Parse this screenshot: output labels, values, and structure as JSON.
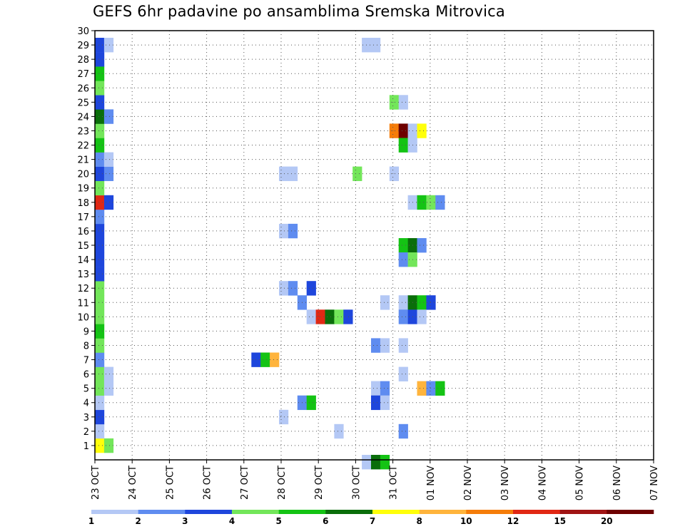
{
  "chart_data": {
    "type": "heatmap",
    "title": "GEFS 6hr padavine po ansamblima Sremska Mitrovica",
    "x_tick_labels": [
      "23 OCT",
      "24 OCT",
      "25 OCT",
      "26 OCT",
      "27 OCT",
      "28 OCT",
      "29 OCT",
      "30 OCT",
      "31 OCT",
      "01 NOV",
      "02 NOV",
      "03 NOV",
      "04 NOV",
      "05 NOV",
      "06 NOV",
      "07 NOV"
    ],
    "x_range_days": [
      0,
      15
    ],
    "y_tick_labels": [
      "1",
      "2",
      "3",
      "4",
      "5",
      "6",
      "7",
      "8",
      "9",
      "10",
      "11",
      "12",
      "13",
      "14",
      "15",
      "16",
      "17",
      "18",
      "19",
      "20",
      "21",
      "22",
      "23",
      "24",
      "25",
      "26",
      "27",
      "28",
      "29",
      "30"
    ],
    "y_range": [
      0,
      30
    ],
    "grid": true,
    "colorbar": {
      "labels": [
        "1",
        "2",
        "3",
        "4",
        "5",
        "6",
        "7",
        "8",
        "10",
        "12",
        "15",
        "20"
      ],
      "colors": [
        "#b4c8f5",
        "#5f8cf0",
        "#1e46dc",
        "#73e65a",
        "#14c314",
        "#0a6e0a",
        "#ffff0a",
        "#ffb43c",
        "#f57d0a",
        "#e12814",
        "#a01414",
        "#6e0000"
      ]
    },
    "cells": [
      [
        0,
        1,
        7
      ],
      [
        1,
        1,
        4
      ],
      [
        0,
        2,
        1
      ],
      [
        0,
        3,
        3
      ],
      [
        0,
        4,
        1
      ],
      [
        0,
        5,
        4
      ],
      [
        1,
        5,
        1
      ],
      [
        0,
        6,
        4
      ],
      [
        1,
        6,
        1
      ],
      [
        0,
        7,
        2
      ],
      [
        0,
        8,
        4
      ],
      [
        0,
        9,
        5
      ],
      [
        0,
        10,
        4
      ],
      [
        0,
        11,
        4
      ],
      [
        0,
        12,
        4
      ],
      [
        0,
        13,
        3
      ],
      [
        0,
        14,
        3
      ],
      [
        0,
        15,
        3
      ],
      [
        0,
        16,
        3
      ],
      [
        0,
        17,
        2
      ],
      [
        0,
        18,
        10
      ],
      [
        1,
        18,
        3
      ],
      [
        0,
        19,
        4
      ],
      [
        0,
        20,
        3
      ],
      [
        1,
        20,
        2
      ],
      [
        0,
        21,
        2
      ],
      [
        1,
        21,
        1
      ],
      [
        0,
        22,
        5
      ],
      [
        0,
        23,
        4
      ],
      [
        0,
        24,
        6
      ],
      [
        1,
        24,
        2
      ],
      [
        0,
        25,
        3
      ],
      [
        0,
        26,
        4
      ],
      [
        0,
        27,
        5
      ],
      [
        0,
        28,
        3
      ],
      [
        0,
        29,
        3
      ],
      [
        1,
        29,
        1
      ],
      [
        29,
        29,
        1
      ],
      [
        30,
        29,
        1
      ],
      [
        32,
        25,
        4
      ],
      [
        33,
        25,
        1
      ],
      [
        32,
        23,
        9
      ],
      [
        33,
        23,
        12
      ],
      [
        34,
        23,
        1
      ],
      [
        35,
        23,
        7
      ],
      [
        33,
        22,
        5
      ],
      [
        34,
        22,
        1
      ],
      [
        29,
        -0.15,
        1
      ],
      [
        30,
        -0.15,
        6
      ],
      [
        31,
        -0.15,
        5
      ],
      [
        20,
        20,
        1
      ],
      [
        21,
        20,
        1
      ],
      [
        28,
        20,
        4
      ],
      [
        32,
        20,
        1
      ],
      [
        34,
        18,
        1
      ],
      [
        35,
        18,
        5
      ],
      [
        36,
        18,
        4
      ],
      [
        37,
        18,
        2
      ],
      [
        20,
        16,
        1
      ],
      [
        21,
        16,
        2
      ],
      [
        33,
        15,
        5
      ],
      [
        34,
        15,
        6
      ],
      [
        35,
        15,
        2
      ],
      [
        33,
        14,
        2
      ],
      [
        34,
        14,
        4
      ],
      [
        20,
        12,
        1
      ],
      [
        21,
        12,
        2
      ],
      [
        23,
        12,
        3
      ],
      [
        22,
        11,
        2
      ],
      [
        31,
        11,
        1
      ],
      [
        33,
        11,
        1
      ],
      [
        34,
        11,
        6
      ],
      [
        35,
        11,
        5
      ],
      [
        36,
        11,
        3
      ],
      [
        23,
        10,
        1
      ],
      [
        24,
        10,
        10
      ],
      [
        25,
        10,
        6
      ],
      [
        26,
        10,
        4
      ],
      [
        27,
        10,
        3
      ],
      [
        33,
        10,
        2
      ],
      [
        34,
        10,
        3
      ],
      [
        35,
        10,
        1
      ],
      [
        30,
        8,
        2
      ],
      [
        31,
        8,
        1
      ],
      [
        33,
        8,
        1
      ],
      [
        17,
        7,
        3
      ],
      [
        18,
        7,
        5
      ],
      [
        19,
        7,
        8
      ],
      [
        33,
        6,
        1
      ],
      [
        30,
        5,
        1
      ],
      [
        31,
        5,
        2
      ],
      [
        35,
        5,
        8
      ],
      [
        36,
        5,
        2
      ],
      [
        37,
        5,
        5
      ],
      [
        22,
        4,
        2
      ],
      [
        23,
        4,
        5
      ],
      [
        30,
        4,
        3
      ],
      [
        31,
        4,
        1
      ],
      [
        20,
        3,
        1
      ],
      [
        26,
        2,
        1
      ],
      [
        33,
        2,
        2
      ]
    ]
  }
}
